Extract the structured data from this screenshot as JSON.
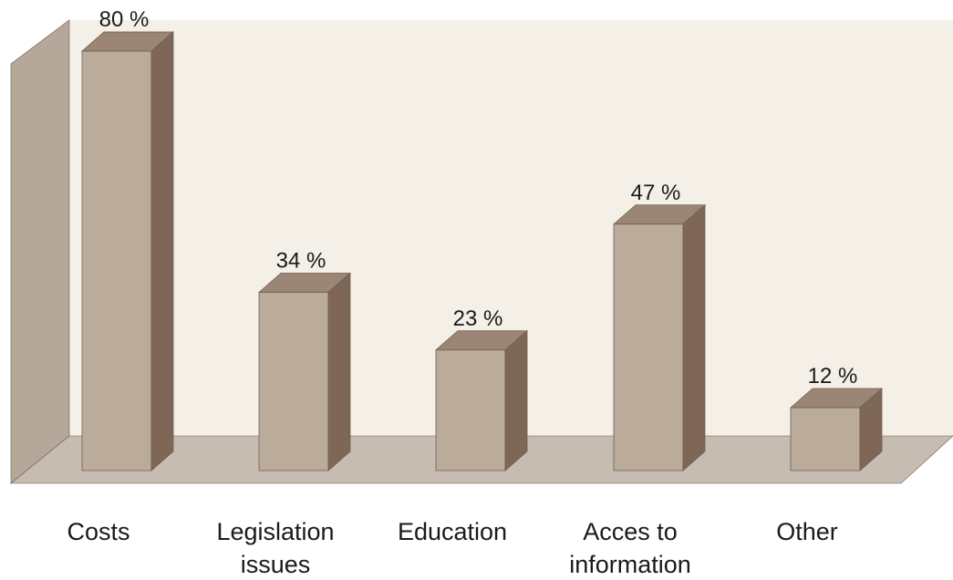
{
  "chart_data": {
    "type": "bar",
    "categories": [
      [
        "Costs"
      ],
      [
        "Legislation",
        "issues"
      ],
      [
        "Education"
      ],
      [
        "Acces to",
        "information"
      ],
      [
        "Other"
      ]
    ],
    "values": [
      80,
      34,
      23,
      47,
      12
    ],
    "value_labels": [
      "80 %",
      "34 %",
      "23 %",
      "47 %",
      "12 %"
    ],
    "unit": "%",
    "ylim": [
      0,
      100
    ],
    "grid": false,
    "style": "3d-column",
    "colors": {
      "wall": "#f5f0e7",
      "wall_side": "#b5a79a",
      "floor": "#c7bcb1",
      "bar_front": "#baab9b",
      "bar_top": "#9b8675",
      "bar_side": "#7e6757",
      "edge": "#6e5e52"
    }
  }
}
